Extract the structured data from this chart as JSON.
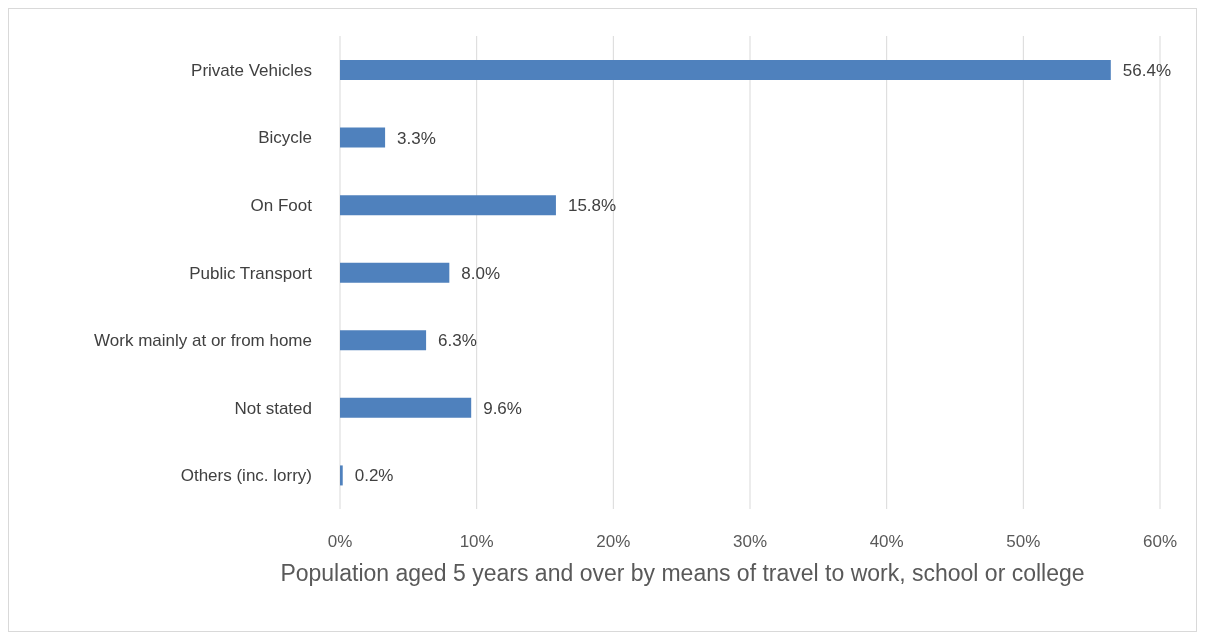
{
  "chart_data": {
    "type": "bar",
    "orientation": "horizontal",
    "xlabel": "Population aged 5 years and over by means of travel to work, school or college",
    "categories": [
      "Private Vehicles",
      "Bicycle",
      "On Foot",
      "Public Transport",
      "Work mainly at or from home",
      "Not stated",
      "Others (inc. lorry)"
    ],
    "values": [
      56.4,
      3.3,
      15.8,
      8.0,
      6.3,
      9.6,
      0.2
    ],
    "value_labels": [
      "56.4%",
      "3.3%",
      "15.8%",
      "8.0%",
      "6.3%",
      "9.6%",
      "0.2%"
    ],
    "color": "#4f81bd",
    "xlim": [
      0,
      60
    ],
    "xticks": [
      {
        "value": 0,
        "label": "0%"
      },
      {
        "value": 10,
        "label": "10%"
      },
      {
        "value": 20,
        "label": "20%"
      },
      {
        "value": 30,
        "label": "30%"
      },
      {
        "value": 40,
        "label": "40%"
      },
      {
        "value": 50,
        "label": "50%"
      },
      {
        "value": 60,
        "label": "60%"
      }
    ],
    "grid": "x",
    "legend": false
  }
}
